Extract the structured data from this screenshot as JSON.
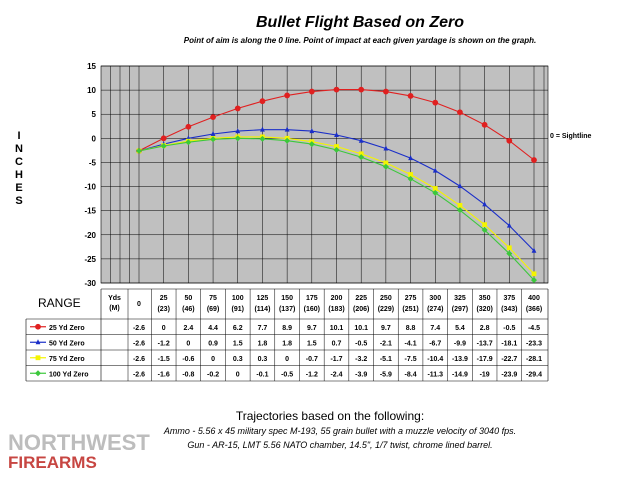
{
  "chart_data": {
    "type": "line",
    "title": "Bullet Flight Based on Zero",
    "subtitle": "Point of aim is along the 0 line. Point of impact at each given yardage is shown on the graph.",
    "ylabel": "INCHES",
    "xlabel": "",
    "ylim": [
      -30,
      15
    ],
    "yticks": [
      15,
      10,
      5,
      0,
      -5,
      -10,
      -15,
      -20,
      -25,
      -30
    ],
    "grid": true,
    "annotation": "0 = Sightline",
    "x": [
      0,
      25,
      50,
      75,
      100,
      125,
      150,
      175,
      200,
      225,
      250,
      275,
      300,
      325,
      350,
      375,
      400
    ],
    "table": {
      "range_label": "RANGE",
      "unit_header_top": "Yds",
      "unit_header_bottom": "(M)",
      "yards": [
        "0",
        "25",
        "50",
        "75",
        "100",
        "125",
        "150",
        "175",
        "200",
        "225",
        "250",
        "275",
        "300",
        "325",
        "350",
        "375",
        "400"
      ],
      "meters": [
        "",
        "(23)",
        "(46)",
        "(69)",
        "(91)",
        "(114)",
        "(137)",
        "(160)",
        "(183)",
        "(206)",
        "(229)",
        "(251)",
        "(274)",
        "(297)",
        "(320)",
        "(343)",
        "(366)"
      ],
      "series_cells": [
        [
          "-2.6",
          "0",
          "2.4",
          "4.4",
          "6.2",
          "7.7",
          "8.9",
          "9.7",
          "10.1",
          "10.1",
          "9.7",
          "8.8",
          "7.4",
          "5.4",
          "2.8",
          "-0.5",
          "-4.5"
        ],
        [
          "-2.6",
          "-1.2",
          "0",
          "0.9",
          "1.5",
          "1.8",
          "1.8",
          "1.5",
          "0.7",
          "-0.5",
          "-2.1",
          "-4.1",
          "-6.7",
          "-9.9",
          "-13.7",
          "-18.1",
          "-23.3"
        ],
        [
          "-2.6",
          "-1.5",
          "-0.6",
          "0",
          "0.3",
          "0.3",
          "0",
          "-0.7",
          "-1.7",
          "-3.2",
          "-5.1",
          "-7.5",
          "-10.4",
          "-13.9",
          "-17.9",
          "-22.7",
          "-28.1"
        ],
        [
          "-2.6",
          "-1.6",
          "-0.8",
          "-0.2",
          "0",
          "-0.1",
          "-0.5",
          "-1.2",
          "-2.4",
          "-3.9",
          "-5.9",
          "-8.4",
          "-11.3",
          "-14.9",
          "-19",
          "-23.9",
          "-29.4"
        ]
      ]
    },
    "series": [
      {
        "name": "25 Yd Zero",
        "color": "#e02020",
        "marker": "circle",
        "values": [
          -2.6,
          0,
          2.4,
          4.4,
          6.2,
          7.7,
          8.9,
          9.7,
          10.1,
          10.1,
          9.7,
          8.8,
          7.4,
          5.4,
          2.8,
          -0.5,
          -4.5
        ]
      },
      {
        "name": "50 Yd Zero",
        "color": "#1a2ec8",
        "marker": "triangle",
        "values": [
          -2.6,
          -1.2,
          0,
          0.9,
          1.5,
          1.8,
          1.8,
          1.5,
          0.7,
          -0.5,
          -2.1,
          -4.1,
          -6.7,
          -9.9,
          -13.7,
          -18.1,
          -23.3
        ]
      },
      {
        "name": "75 Yd Zero",
        "color": "#f4f400",
        "marker": "square",
        "values": [
          -2.6,
          -1.5,
          -0.6,
          0,
          0.3,
          0.3,
          0,
          -0.7,
          -1.7,
          -3.2,
          -5.1,
          -7.5,
          -10.4,
          -13.9,
          -17.9,
          -22.7,
          -28.1
        ]
      },
      {
        "name": "100 Yd Zero",
        "color": "#3cc83c",
        "marker": "diamond",
        "values": [
          -2.6,
          -1.6,
          -0.8,
          -0.2,
          0,
          -0.1,
          -0.5,
          -1.2,
          -2.4,
          -3.9,
          -5.9,
          -8.4,
          -11.3,
          -14.9,
          -19,
          -23.9,
          -29.4
        ]
      }
    ]
  },
  "footer": {
    "heading": "Trajectories based on the following:",
    "line1": "Ammo - 5.56 x 45 military spec M-193, 55 grain bullet with a muzzle velocity of 3040 fps.",
    "line2": "Gun - AR-15, LMT 5.56 NATO chamber, 14.5\", 1/7 twist, chrome lined barrel."
  },
  "logo": {
    "line1": "NORTHWEST",
    "line2": "FIREARMS"
  }
}
